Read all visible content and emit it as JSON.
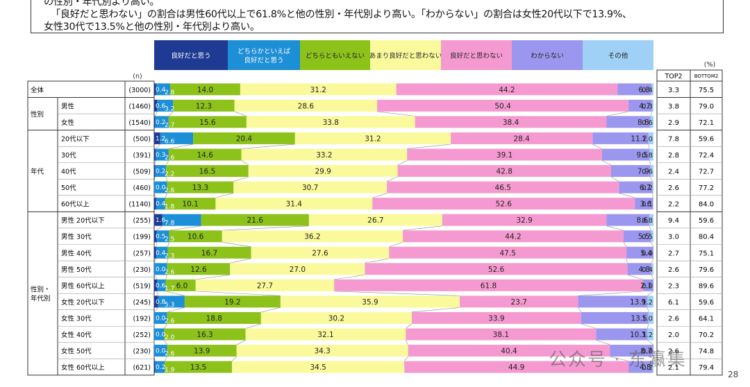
{
  "notes": [
    "の性別・年代別より高い。",
    "「良好だと思わない」の割合は男性60代以上で61.8%と他の性別・年代別より高い。「わからない」の割合は女性20代以下で13.9%、",
    "女性30代で13.5%と他の性別・年代別より高い。"
  ],
  "watermark": "公众号 · 东瀛集",
  "page_number": "28",
  "chart_data": {
    "type": "stacked-bar-100",
    "percent_label": "(%)",
    "n_label": "(n)",
    "categories": [
      "良好だと思う",
      "どちらかといえば良好だと思う",
      "どちらともいえない",
      "あまり良好だと思わない",
      "良好だと思わない",
      "わからない",
      "その他"
    ],
    "header_lines": [
      [
        "良好だと思う"
      ],
      [
        "どちらかといえば",
        "良好だと思う"
      ],
      [
        "どちらともいえない"
      ],
      [
        "あまり良好だと思わない"
      ],
      [
        "良好だと思わない"
      ],
      [
        "わからない"
      ],
      [
        "その他"
      ]
    ],
    "colors": [
      "#1f3a93",
      "#1d8fd6",
      "#8cc21a",
      "#fafa9c",
      "#f59ad0",
      "#9b96ee",
      "#9fd0f5"
    ],
    "extra_headers": [
      "TOP2",
      "BOTTOM2"
    ],
    "groups": [
      {
        "label": "",
        "rows": [
          0
        ]
      },
      {
        "label": "性別",
        "rows": [
          1,
          2
        ]
      },
      {
        "label": "年代",
        "rows": [
          3,
          4,
          5,
          6,
          7
        ]
      },
      {
        "label": "性別・\n年代別",
        "rows": [
          8,
          9,
          10,
          11,
          12,
          13,
          14,
          15,
          16,
          17
        ]
      }
    ],
    "rows": [
      {
        "label": "全体",
        "n": "(3000)",
        "values": [
          0.4,
          2.8,
          14.0,
          31.2,
          44.2,
          6.8,
          0.4
        ],
        "labels": [
          "0.4",
          "2.8",
          "14.0",
          "31.2",
          "44.2",
          "6.8",
          "0.4"
        ],
        "top2": "3.3",
        "bottom2": "75.5"
      },
      {
        "label": "男性",
        "n": "(1460)",
        "values": [
          0.6,
          3.2,
          12.3,
          28.6,
          50.4,
          4.7,
          0.3
        ],
        "labels": [
          "0.6",
          "3.2",
          "12.3",
          "28.6",
          "50.4",
          "4.7",
          "0.3"
        ],
        "top2": "3.8",
        "bottom2": "79.0"
      },
      {
        "label": "女性",
        "n": "(1540)",
        "values": [
          0.2,
          2.7,
          15.6,
          33.8,
          38.4,
          8.8,
          0.6
        ],
        "labels": [
          "0.2",
          "2.7",
          "15.6",
          "33.8",
          "38.4",
          "8.8",
          "0.6"
        ],
        "top2": "2.9",
        "bottom2": "72.1"
      },
      {
        "label": "20代以下",
        "n": "(500)",
        "values": [
          1.2,
          6.6,
          20.4,
          31.2,
          28.4,
          11.2,
          1.0
        ],
        "labels": [
          "1.2",
          "6.6",
          "20.4",
          "31.2",
          "28.4",
          "11.2",
          "1.0"
        ],
        "top2": "7.8",
        "bottom2": "59.6"
      },
      {
        "label": "30代",
        "n": "(391)",
        "values": [
          0.3,
          2.6,
          14.6,
          33.2,
          39.1,
          9.5,
          0.8
        ],
        "labels": [
          "0.3",
          "2.6",
          "14.6",
          "33.2",
          "39.1",
          "9.5",
          "0.8"
        ],
        "top2": "2.8",
        "bottom2": "72.4"
      },
      {
        "label": "40代",
        "n": "(509)",
        "values": [
          0.2,
          2.2,
          16.5,
          29.9,
          42.8,
          7.9,
          0.6
        ],
        "labels": [
          "0.2",
          "2.2",
          "16.5",
          "29.9",
          "42.8",
          "7.9",
          "0.6"
        ],
        "top2": "2.4",
        "bottom2": "72.7"
      },
      {
        "label": "50代",
        "n": "(460)",
        "values": [
          0.0,
          2.6,
          13.3,
          30.7,
          46.5,
          6.7,
          0.2
        ],
        "labels": [
          "0.0",
          "2.6",
          "13.3",
          "30.7",
          "46.5",
          "6.7",
          "0.2"
        ],
        "top2": "2.6",
        "bottom2": "77.2"
      },
      {
        "label": "60代以上",
        "n": "(1140)",
        "values": [
          0.4,
          1.8,
          10.1,
          31.4,
          52.6,
          3.6,
          0.1
        ],
        "labels": [
          "0.4",
          "1.8",
          "10.1",
          "31.4",
          "52.6",
          "3.6",
          "0.1"
        ],
        "top2": "2.2",
        "bottom2": "84.0"
      },
      {
        "label": "男性 20代以下",
        "n": "(255)",
        "values": [
          1.6,
          7.8,
          21.6,
          26.7,
          32.9,
          8.6,
          0.8
        ],
        "labels": [
          "1.6",
          "7.8",
          "21.6",
          "26.7",
          "32.9",
          "8.6",
          "0.8"
        ],
        "top2": "9.4",
        "bottom2": "59.6"
      },
      {
        "label": "男性 30代",
        "n": "(199)",
        "values": [
          0.5,
          2.5,
          10.6,
          36.2,
          44.2,
          5.5,
          0.5
        ],
        "labels": [
          "0.5",
          "2.5",
          "10.6",
          "36.2",
          "44.2",
          "5.5",
          "0.5"
        ],
        "top2": "3.0",
        "bottom2": "80.4"
      },
      {
        "label": "男性 40代",
        "n": "(257)",
        "values": [
          0.4,
          2.3,
          16.7,
          27.6,
          47.5,
          5.4,
          0.0
        ],
        "labels": [
          "0.4",
          "2.3",
          "16.7",
          "27.6",
          "47.5",
          "5.4",
          "0.0"
        ],
        "top2": "2.7",
        "bottom2": "75.1"
      },
      {
        "label": "男性 50代",
        "n": "(230)",
        "values": [
          0.0,
          2.6,
          12.6,
          27.0,
          52.6,
          4.8,
          0.4
        ],
        "labels": [
          "0.0",
          "2.6",
          "12.6",
          "27.0",
          "52.6",
          "4.8",
          "0.4"
        ],
        "top2": "2.6",
        "bottom2": "79.6"
      },
      {
        "label": "男性 60代以上",
        "n": "(519)",
        "values": [
          0.6,
          1.7,
          6.0,
          27.7,
          61.8,
          2.1,
          0.0
        ],
        "labels": [
          "0.6",
          "1.7",
          "6.0",
          "27.7",
          "61.8",
          "2.1",
          "0.0"
        ],
        "top2": "2.3",
        "bottom2": "89.6"
      },
      {
        "label": "女性 20代以下",
        "n": "(245)",
        "values": [
          0.8,
          5.3,
          19.2,
          35.9,
          23.7,
          13.9,
          1.2
        ],
        "labels": [
          "0.8",
          "5.3",
          "19.2",
          "35.9",
          "23.7",
          "13.9",
          "1.2"
        ],
        "top2": "6.1",
        "bottom2": "59.6"
      },
      {
        "label": "女性 30代",
        "n": "(192)",
        "values": [
          0.0,
          2.6,
          18.8,
          30.2,
          33.9,
          13.5,
          1.0
        ],
        "labels": [
          "0.0",
          "2.6",
          "18.8",
          "30.2",
          "33.9",
          "13.5",
          "1.0"
        ],
        "top2": "2.6",
        "bottom2": "64.1"
      },
      {
        "label": "女性 40代",
        "n": "(252)",
        "values": [
          0.0,
          2.0,
          16.3,
          32.1,
          38.1,
          10.3,
          1.2
        ],
        "labels": [
          "0.0",
          "2.0",
          "16.3",
          "32.1",
          "38.1",
          "10.3",
          "1.2"
        ],
        "top2": "2.0",
        "bottom2": "70.2"
      },
      {
        "label": "女性 50代",
        "n": "(230)",
        "values": [
          0.0,
          2.6,
          13.9,
          34.3,
          40.4,
          8.7,
          0.0
        ],
        "labels": [
          "0.0",
          "2.6",
          "13.9",
          "34.3",
          "40.4",
          "8.7",
          "0.0"
        ],
        "top2": "2.6",
        "bottom2": "74.8"
      },
      {
        "label": "女性 60代以上",
        "n": "(621)",
        "values": [
          0.2,
          1.9,
          13.5,
          34.5,
          44.9,
          4.8,
          0.2
        ],
        "labels": [
          "0.2",
          "1.9",
          "13.5",
          "34.5",
          "44.9",
          "4.8",
          "0.2"
        ],
        "top2": "2.1",
        "bottom2": "79.4"
      }
    ]
  }
}
